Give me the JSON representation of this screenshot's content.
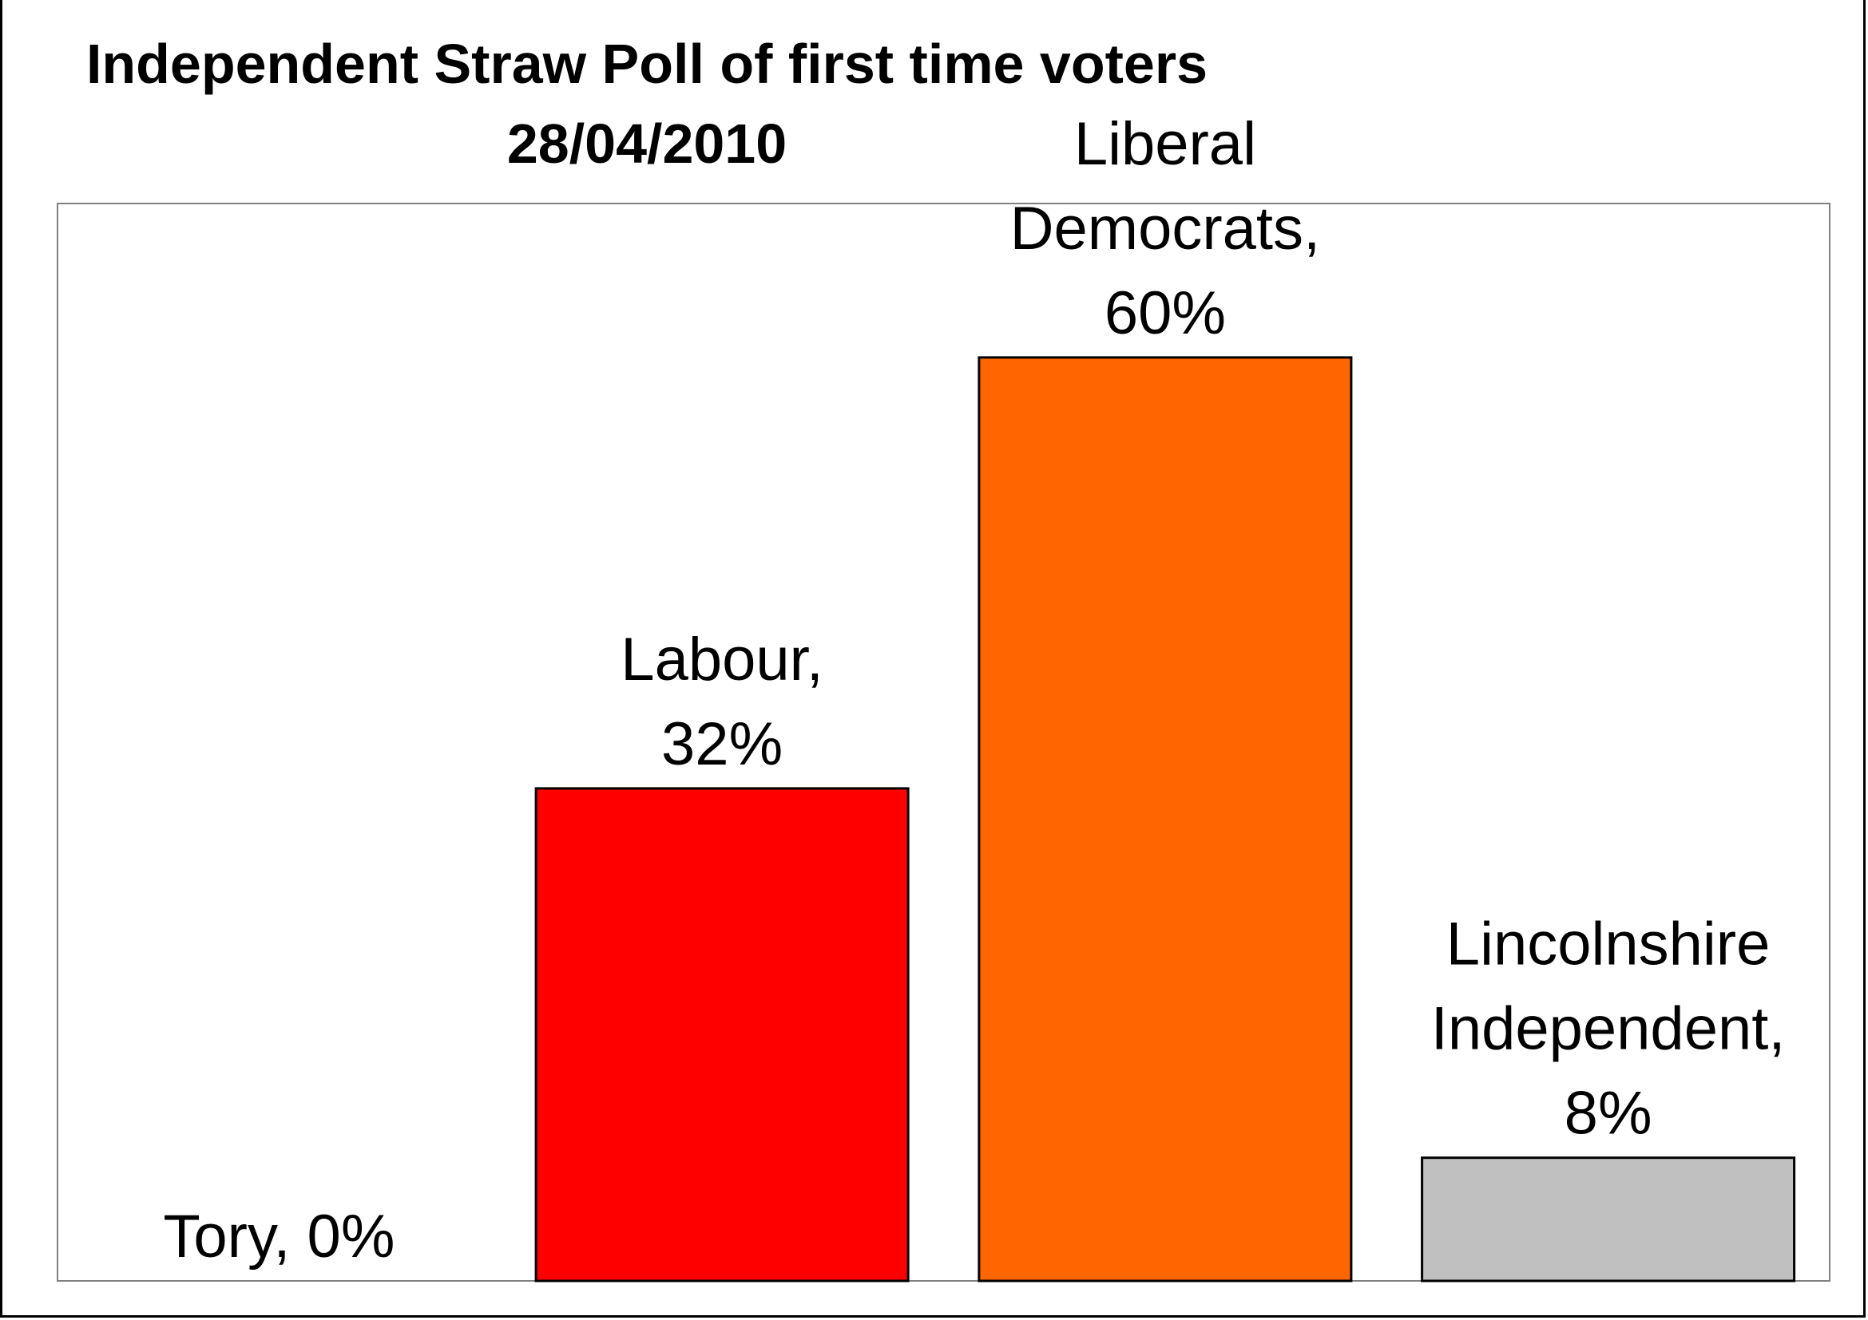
{
  "chart_data": {
    "type": "bar",
    "title": "Independent Straw Poll of first time voters",
    "subtitle": "28/04/2010",
    "xlabel": "",
    "ylabel": "",
    "ylim": [
      0,
      70
    ],
    "grid": false,
    "legend": "none",
    "data_labels": [
      [
        "Tory, 0%"
      ],
      [
        "Labour,",
        "32%"
      ],
      [
        "Liberal",
        "Democrats,",
        "60%"
      ],
      [
        "Lincolnshire",
        "Independent,",
        "8%"
      ]
    ],
    "series": [
      {
        "categories": [
          "Tory",
          "Labour",
          "Liberal Democrats",
          "Lincolnshire Independent"
        ],
        "values": [
          0,
          32,
          60,
          8
        ],
        "colors": [
          "#000000",
          "#ff0000",
          "#ff6600",
          "#c0c0c0"
        ]
      }
    ]
  }
}
